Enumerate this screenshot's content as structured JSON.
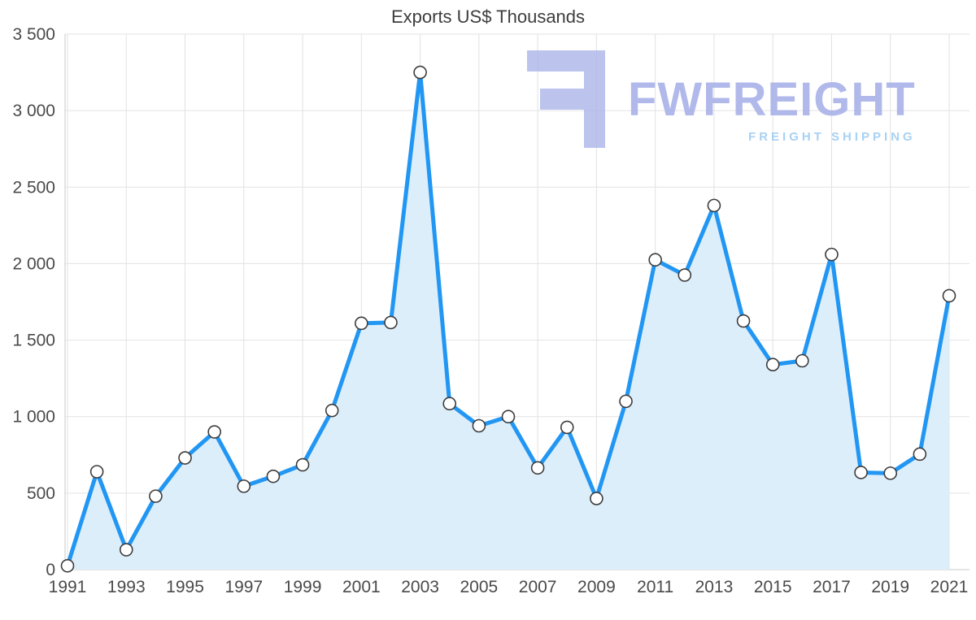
{
  "chart_data": {
    "type": "area",
    "title": "Exports US$ Thousands",
    "x": [
      1991,
      1992,
      1993,
      1994,
      1995,
      1996,
      1997,
      1998,
      1999,
      2000,
      2001,
      2002,
      2003,
      2004,
      2005,
      2006,
      2007,
      2008,
      2009,
      2010,
      2011,
      2012,
      2013,
      2014,
      2015,
      2016,
      2017,
      2018,
      2019,
      2020,
      2021
    ],
    "values": [
      25,
      640,
      130,
      480,
      730,
      900,
      545,
      610,
      685,
      1040,
      1610,
      1615,
      3250,
      1085,
      940,
      1000,
      665,
      930,
      465,
      1100,
      2025,
      1925,
      2380,
      1625,
      1340,
      1365,
      2060,
      635,
      630,
      755,
      1790
    ],
    "ylim": [
      0,
      3500
    ],
    "ytick_step": 500,
    "ytick_labels": [
      "0",
      "500",
      "1 000",
      "1 500",
      "2 000",
      "2 500",
      "3 000",
      "3 500"
    ],
    "xtick_labels": [
      "1991",
      "1993",
      "1995",
      "1997",
      "1999",
      "2001",
      "2003",
      "2005",
      "2007",
      "2009",
      "2011",
      "2013",
      "2015",
      "2017",
      "2019",
      "2021"
    ],
    "grid": true,
    "legend": "none",
    "line_color": "#2196f3",
    "area_color": "#ddeefb",
    "marker_fill": "#ffffff",
    "marker_stroke": "#3c3c3c",
    "grid_color": "#e2e2e2",
    "axis_color": "#c9c9c9",
    "label_color": "#4a4a4a"
  },
  "watermark": {
    "name": "FWFREIGHT",
    "tagline": "FREIGHT SHIPPING",
    "logo_color": "#a9b2e9",
    "tagline_color": "#9fcdf2"
  }
}
